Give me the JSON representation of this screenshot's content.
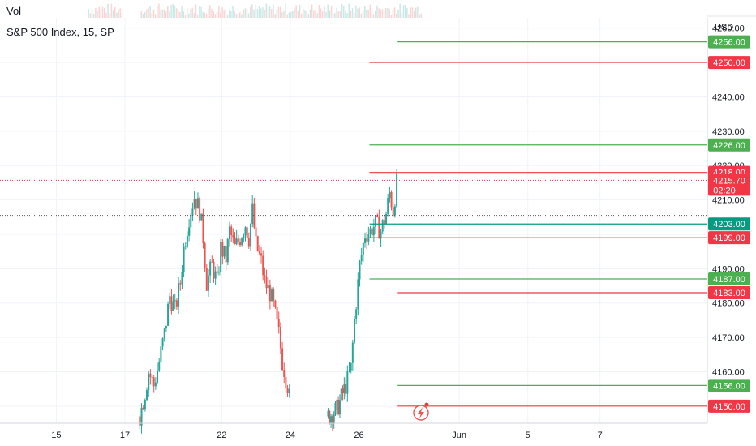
{
  "header": {
    "volume_label": "Vol",
    "title": "S&P 500 Index, 15, SP",
    "currency": "USD"
  },
  "colors": {
    "up": "#26a69a",
    "down": "#ef5350",
    "green_line": "#4caf50",
    "red_line": "#f23645",
    "axis_text": "#131722",
    "grid": "#f0f3fa"
  },
  "chart_data": {
    "type": "candlestick",
    "title": "S&P 500 Index, 15, SP",
    "currency": "USD",
    "y_range": [
      4145,
      4263
    ],
    "y_ticks": [
      "4260.00",
      "4250.00",
      "4240.00",
      "4230.00",
      "4220.00",
      "4210.00",
      "4200.00",
      "4190.00",
      "4180.00",
      "4170.00",
      "4160.00",
      "4150.00"
    ],
    "x_ticks": [
      {
        "label": "15",
        "pos": 3.2
      },
      {
        "label": "17",
        "pos": 7.1
      },
      {
        "label": "22",
        "pos": 12.6
      },
      {
        "label": "24",
        "pos": 16.5
      },
      {
        "label": "26",
        "pos": 20.4
      },
      {
        "label": "Jun",
        "pos": 26.1
      },
      {
        "label": "5",
        "pos": 30.0
      },
      {
        "label": "7",
        "pos": 34.1
      }
    ],
    "x_range": [
      0,
      40.2
    ],
    "price_path": [
      [
        7.9,
        4147
      ],
      [
        8.2,
        4154
      ],
      [
        8.4,
        4160
      ],
      [
        8.7,
        4156
      ],
      [
        9.0,
        4163
      ],
      [
        9.3,
        4171
      ],
      [
        9.6,
        4182
      ],
      [
        9.9,
        4178
      ],
      [
        10.2,
        4186
      ],
      [
        10.4,
        4196
      ],
      [
        10.7,
        4205
      ],
      [
        11.0,
        4211
      ],
      [
        11.3,
        4207
      ],
      [
        11.5,
        4199
      ],
      [
        11.7,
        4186
      ],
      [
        12.0,
        4191
      ],
      [
        12.3,
        4186
      ],
      [
        12.5,
        4196
      ],
      [
        12.8,
        4193
      ],
      [
        13.0,
        4201
      ],
      [
        13.3,
        4196
      ],
      [
        13.6,
        4199
      ],
      [
        13.9,
        4203
      ],
      [
        14.1,
        4199
      ],
      [
        14.3,
        4207
      ],
      [
        14.5,
        4197
      ],
      [
        14.8,
        4192
      ],
      [
        15.0,
        4186
      ],
      [
        15.3,
        4183
      ],
      [
        15.5,
        4179
      ],
      [
        15.8,
        4171
      ],
      [
        16.0,
        4163
      ],
      [
        16.3,
        4156
      ],
      [
        16.5,
        4149
      ],
      [
        18.6,
        4147
      ],
      [
        19.1,
        4149
      ],
      [
        19.6,
        4156
      ],
      [
        19.9,
        4161
      ],
      [
        20.1,
        4175
      ],
      [
        20.4,
        4191
      ],
      [
        20.7,
        4200
      ],
      [
        21.0,
        4201
      ],
      [
        21.3,
        4203
      ],
      [
        21.6,
        4201
      ],
      [
        21.9,
        4206
      ],
      [
        22.1,
        4212
      ],
      [
        22.3,
        4207
      ],
      [
        22.5,
        4215
      ],
      [
        22.6,
        4223
      ]
    ],
    "volume_bars_x": [
      5,
      6,
      8,
      9,
      10,
      11,
      12,
      13,
      14,
      15,
      16,
      17,
      18,
      19,
      20,
      21,
      22,
      23
    ],
    "levels": [
      {
        "value": 4256.0,
        "label": "4256.00",
        "color": "green",
        "start": 22.6
      },
      {
        "value": 4250.0,
        "label": "4250.00",
        "color": "red",
        "start": 21.0
      },
      {
        "value": 4226.0,
        "label": "4226.00",
        "color": "green",
        "start": 21.0
      },
      {
        "value": 4218.0,
        "label": "4218.00",
        "color": "red",
        "start": 21.0
      },
      {
        "value": 4203.0,
        "label": "4203.00",
        "color": "teal",
        "start": 21.0
      },
      {
        "value": 4199.0,
        "label": "4199.00",
        "color": "red",
        "start": 21.0
      },
      {
        "value": 4187.0,
        "label": "4187.00",
        "color": "green",
        "start": 21.0
      },
      {
        "value": 4183.0,
        "label": "4183.00",
        "color": "red",
        "start": 22.6
      },
      {
        "value": 4156.0,
        "label": "4156.00",
        "color": "green",
        "start": 22.6
      },
      {
        "value": 4150.0,
        "label": "4150.00",
        "color": "red",
        "start": 22.6
      }
    ],
    "current_price": {
      "value": 4215.7,
      "label": "4215.70",
      "countdown": "02:20"
    },
    "last_close_dotted": 4205.5
  }
}
